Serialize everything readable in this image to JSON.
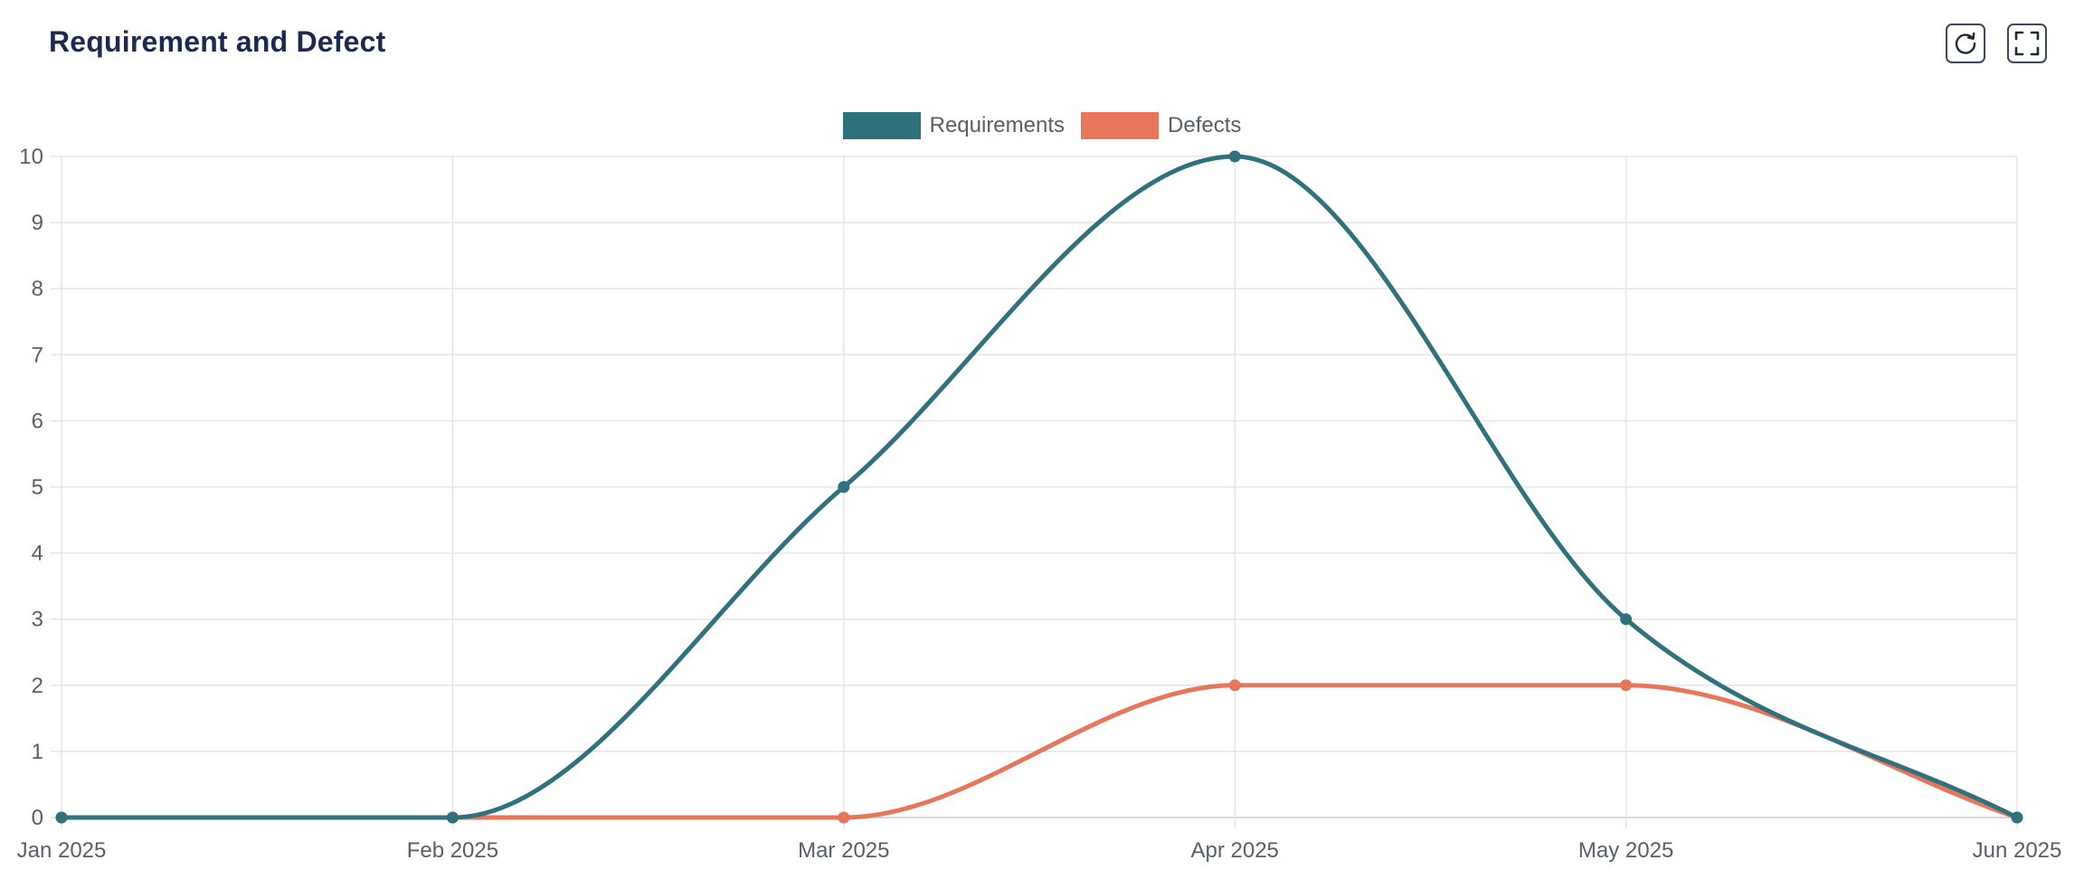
{
  "header": {
    "title": "Requirement and Defect",
    "refresh_icon": "refresh-icon",
    "fullscreen_icon": "fullscreen-icon"
  },
  "chart_data": {
    "type": "line",
    "title": "Requirement and Defect",
    "x": [
      "Jan 2025",
      "Feb 2025",
      "Mar 2025",
      "Apr 2025",
      "May 2025",
      "Jun 2025"
    ],
    "series": [
      {
        "name": "Requirements",
        "color": "#2f717d",
        "values": [
          0,
          0,
          5,
          10,
          3,
          0
        ]
      },
      {
        "name": "Defects",
        "color": "#e8765a",
        "values": [
          0,
          0,
          0,
          2,
          2,
          0
        ]
      }
    ],
    "ylim": [
      0,
      10
    ],
    "yticks": [
      "0",
      "1",
      "2",
      "3",
      "4",
      "5",
      "6",
      "7",
      "8",
      "9",
      "10"
    ],
    "xlabel": "",
    "ylabel": "",
    "grid": true,
    "legend_position": "top-center",
    "curve": "smooth"
  }
}
